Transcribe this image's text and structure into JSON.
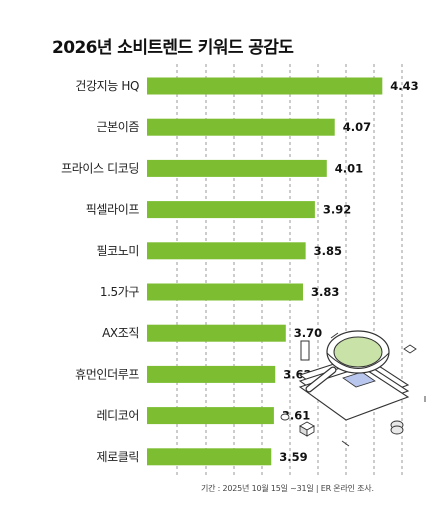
{
  "chart_data": {
    "type": "bar",
    "orientation": "horizontal",
    "title": "2026년 소비트렌드 키워드 공감도",
    "categories": [
      "건강지능 HQ",
      "근본이즘",
      "프라이스 디코딩",
      "픽셀라이프",
      "필코노미",
      "1.5가구",
      "AX조직",
      "휴먼인더루프",
      "레디코어",
      "제로클릭"
    ],
    "values": [
      4.43,
      4.07,
      4.01,
      3.92,
      3.85,
      3.83,
      3.7,
      3.62,
      3.61,
      3.59
    ],
    "value_labels": [
      "4.43",
      "4.07",
      "4.01",
      "3.92",
      "3.85",
      "3.83",
      "3.70",
      "3.62",
      "3.61",
      "3.59"
    ],
    "xlim": [
      2.65,
      4.7
    ],
    "grid": true,
    "bar_color": "#7cbd31",
    "grid_color": "#9a9a9a",
    "source": "기간 : 2025년 10월 15일 ~31일 | ER 온라인 조사."
  }
}
